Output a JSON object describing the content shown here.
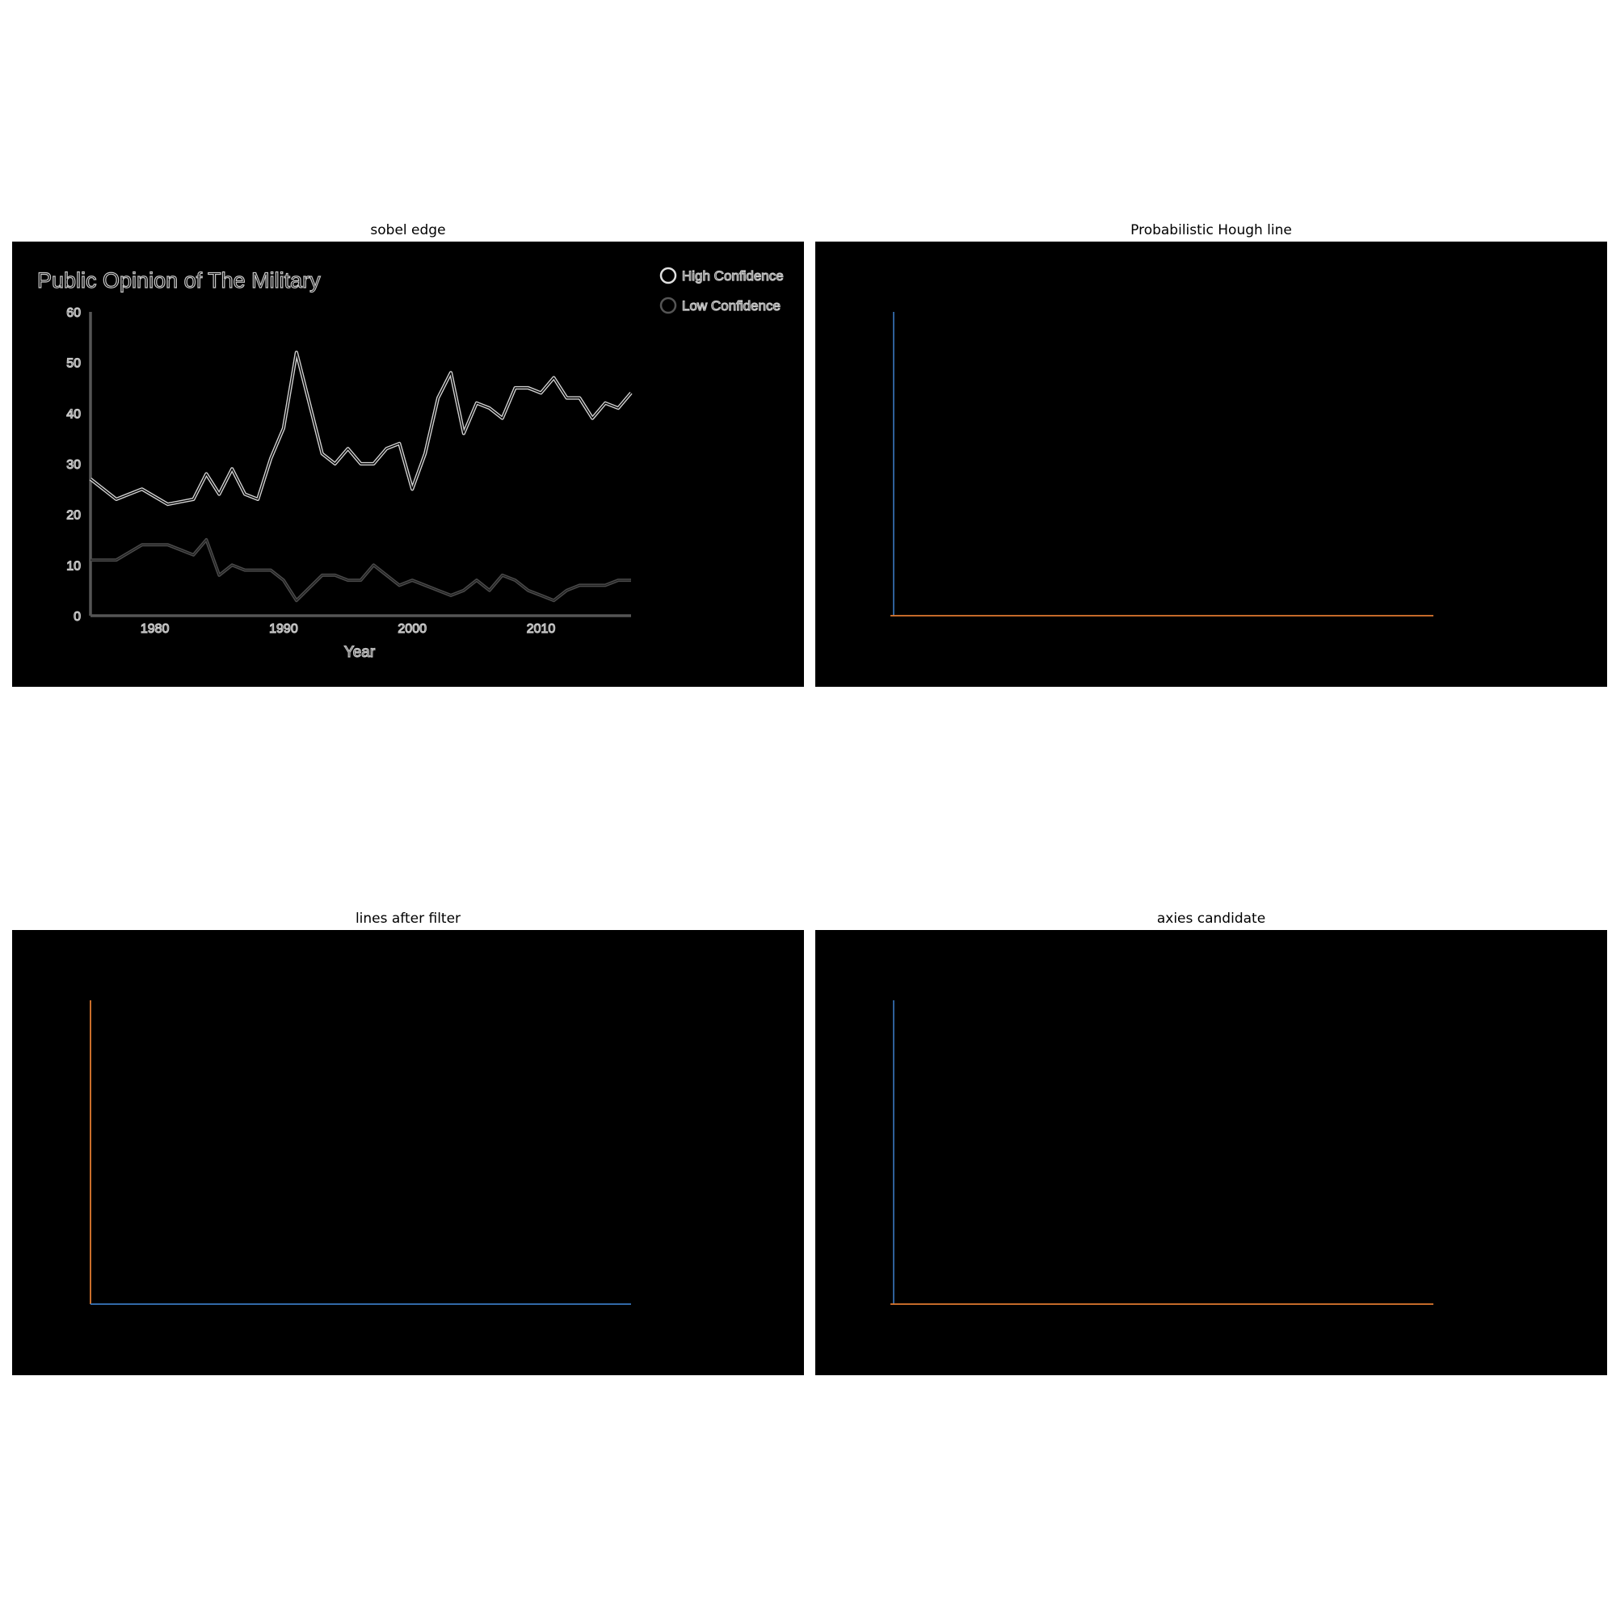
{
  "panels": {
    "sobel": {
      "title": "sobel edge"
    },
    "hough": {
      "title": "Probabilistic Hough line"
    },
    "filtered": {
      "title": "lines after filter"
    },
    "axes": {
      "title": "axies candidate"
    }
  },
  "colors": {
    "background": "#000000",
    "edge_bright": "#d0d0d0",
    "edge_dim": "#555555",
    "line_blue": "#3a78c0",
    "line_orange": "#e07a30"
  },
  "chart_data": {
    "type": "line",
    "title": "Public Opinion of The Military",
    "xlabel": "Year",
    "ylabel": "",
    "xlim": [
      1975,
      2017
    ],
    "ylim": [
      0,
      60
    ],
    "x_ticks": [
      1980,
      1990,
      2000,
      2010
    ],
    "x_tick_labels": [
      "1980",
      "1990",
      "2000",
      "2010"
    ],
    "y_ticks": [
      0,
      10,
      20,
      30,
      40,
      50,
      60
    ],
    "y_tick_labels": [
      "0",
      "10",
      "20",
      "30",
      "40",
      "50",
      "60"
    ],
    "legend": "top-right",
    "x": [
      1975,
      1976,
      1977,
      1978,
      1979,
      1980,
      1981,
      1982,
      1983,
      1984,
      1985,
      1986,
      1987,
      1988,
      1989,
      1990,
      1991,
      1992,
      1993,
      1994,
      1995,
      1996,
      1997,
      1998,
      1999,
      2000,
      2001,
      2002,
      2003,
      2004,
      2005,
      2006,
      2007,
      2008,
      2009,
      2010,
      2011,
      2012,
      2013,
      2014,
      2015,
      2016,
      2017
    ],
    "series": [
      {
        "name": "High Confidence",
        "values": [
          27,
          25,
          23,
          24,
          25,
          23.5,
          22,
          22.5,
          23,
          28,
          24,
          29,
          24,
          23,
          31,
          37,
          52,
          42,
          32,
          30,
          33,
          30,
          30,
          33,
          34,
          25,
          32,
          43,
          48,
          36,
          42,
          41,
          39,
          45,
          45,
          44,
          47,
          43,
          43,
          39,
          42,
          41,
          44
        ]
      },
      {
        "name": "Low Confidence",
        "values": [
          11,
          11,
          11,
          12.5,
          14,
          14,
          14,
          13,
          12,
          15,
          8,
          10,
          9,
          9,
          9,
          7,
          3,
          5.5,
          8,
          8,
          7,
          7,
          10,
          8,
          6,
          7,
          6,
          5,
          4,
          5,
          7,
          5,
          8,
          7,
          5,
          4,
          3,
          5,
          6,
          6,
          6,
          7,
          7
        ]
      }
    ]
  }
}
